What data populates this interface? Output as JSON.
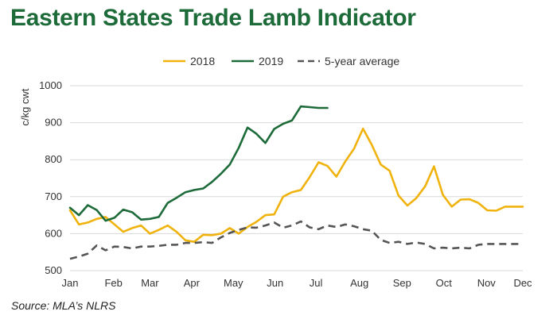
{
  "colors": {
    "title": "#1e6b3a",
    "s2018": "#f0b30e",
    "s2019": "#1e6b3a",
    "avg": "#555555",
    "grid": "#d9d9d9"
  },
  "chart_data": {
    "type": "line",
    "title": "Eastern States Trade Lamb Indicator",
    "ylabel": "c/kg cwt",
    "xlabel": "",
    "ylim": [
      500,
      1000
    ],
    "yticks": [
      500,
      600,
      700,
      800,
      900,
      1000
    ],
    "xlim": [
      1,
      52
    ],
    "xticks": [
      {
        "label": "Jan",
        "week": 1
      },
      {
        "label": "Feb",
        "week": 5.9
      },
      {
        "label": "Mar",
        "week": 10
      },
      {
        "label": "Apr",
        "week": 14.7
      },
      {
        "label": "May",
        "week": 19.4
      },
      {
        "label": "Jun",
        "week": 24.1
      },
      {
        "label": "Jul",
        "week": 28.7
      },
      {
        "label": "Aug",
        "week": 33.6
      },
      {
        "label": "Sep",
        "week": 38.4
      },
      {
        "label": "Oct",
        "week": 43.1
      },
      {
        "label": "Nov",
        "week": 47.9
      },
      {
        "label": "Dec",
        "week": 52
      }
    ],
    "legend": {
      "placement": "top-center"
    },
    "series": [
      {
        "name": "2018",
        "key": "s2018",
        "style": "solid",
        "x": [
          1,
          2,
          3,
          4,
          5,
          6,
          7,
          8,
          9,
          10,
          11,
          12,
          13,
          14,
          15,
          16,
          17,
          18,
          19,
          20,
          21,
          22,
          23,
          24,
          25,
          26,
          27,
          28,
          29,
          30,
          31,
          32,
          33,
          34,
          35,
          36,
          37,
          38,
          39,
          40,
          41,
          42,
          43,
          44,
          45,
          46,
          47,
          48,
          49,
          50,
          51,
          52
        ],
        "y": [
          663,
          625,
          630,
          640,
          645,
          625,
          605,
          615,
          622,
          600,
          610,
          622,
          605,
          582,
          578,
          597,
          596,
          600,
          615,
          600,
          618,
          632,
          650,
          652,
          700,
          712,
          718,
          753,
          793,
          783,
          754,
          795,
          830,
          884,
          840,
          787,
          770,
          703,
          676,
          696,
          728,
          782,
          705,
          673,
          692,
          693,
          683,
          663,
          662,
          673,
          673,
          673
        ]
      },
      {
        "name": "2019",
        "key": "s2019",
        "style": "solid",
        "x": [
          1,
          2,
          3,
          4,
          5,
          6,
          7,
          8,
          9,
          10,
          11,
          12,
          13,
          14,
          15,
          16,
          17,
          18,
          19,
          20,
          21,
          22,
          23,
          24,
          25,
          26,
          27,
          28,
          29,
          30
        ],
        "y": [
          670,
          650,
          677,
          664,
          635,
          643,
          665,
          658,
          638,
          640,
          645,
          683,
          697,
          712,
          718,
          722,
          740,
          762,
          787,
          832,
          887,
          870,
          845,
          883,
          897,
          906,
          944,
          942,
          940,
          940
        ]
      },
      {
        "name": "5-year average",
        "key": "avg",
        "style": "dashed",
        "x": [
          1,
          2,
          3,
          4,
          5,
          6,
          7,
          8,
          9,
          10,
          11,
          12,
          13,
          14,
          15,
          16,
          17,
          18,
          19,
          20,
          21,
          22,
          23,
          24,
          25,
          26,
          27,
          28,
          29,
          30,
          31,
          32,
          33,
          34,
          35,
          36,
          37,
          38,
          39,
          40,
          41,
          42,
          43,
          44,
          45,
          46,
          47,
          48,
          49,
          50,
          51,
          52
        ],
        "y": [
          532,
          538,
          546,
          568,
          555,
          565,
          564,
          560,
          565,
          565,
          567,
          570,
          570,
          575,
          575,
          577,
          575,
          590,
          602,
          610,
          617,
          616,
          622,
          630,
          616,
          622,
          633,
          617,
          612,
          622,
          618,
          625,
          620,
          612,
          608,
          583,
          575,
          578,
          572,
          576,
          572,
          560,
          562,
          560,
          562,
          560,
          570,
          572,
          572,
          572,
          572,
          572
        ]
      }
    ]
  },
  "source": "Source: MLA’s NLRS"
}
